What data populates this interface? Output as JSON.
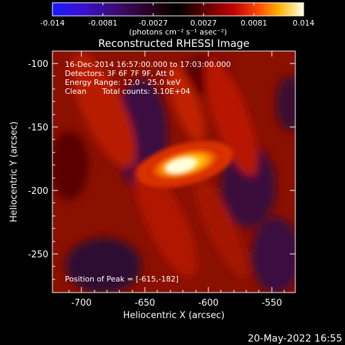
{
  "colorbar": {
    "ticks": [
      "-0.014",
      "-0.0081",
      "-0.0027",
      "0.0027",
      "0.0081",
      "0.014"
    ],
    "units": "(photons cm⁻² s⁻¹ asec⁻²)"
  },
  "title": "Reconstructed RHESSI Image",
  "info": {
    "line1": "16-Dec-2014 16:57:00.000 to 17:03:00.000",
    "line2": "Detectors: 3F 6F 7F 9F, Att 0",
    "line3": "Energy Range: 12.0 - 25.0 keV",
    "line4a": "Clean",
    "line4b": "Total counts: 3.10E+04"
  },
  "peak_text": "Position of Peak = [-615,-182]",
  "axes": {
    "xlabel": "Heliocentric X (arcsec)",
    "ylabel": "Heliocentric Y (arcsec)",
    "xticks": [
      "-700",
      "-650",
      "-600",
      "-550"
    ],
    "yticks": [
      "-100",
      "-150",
      "-200",
      "-250"
    ]
  },
  "timestamp": "20-May-2022 16:55",
  "colors": {
    "background": "#000000",
    "text": "#ffffff"
  }
}
